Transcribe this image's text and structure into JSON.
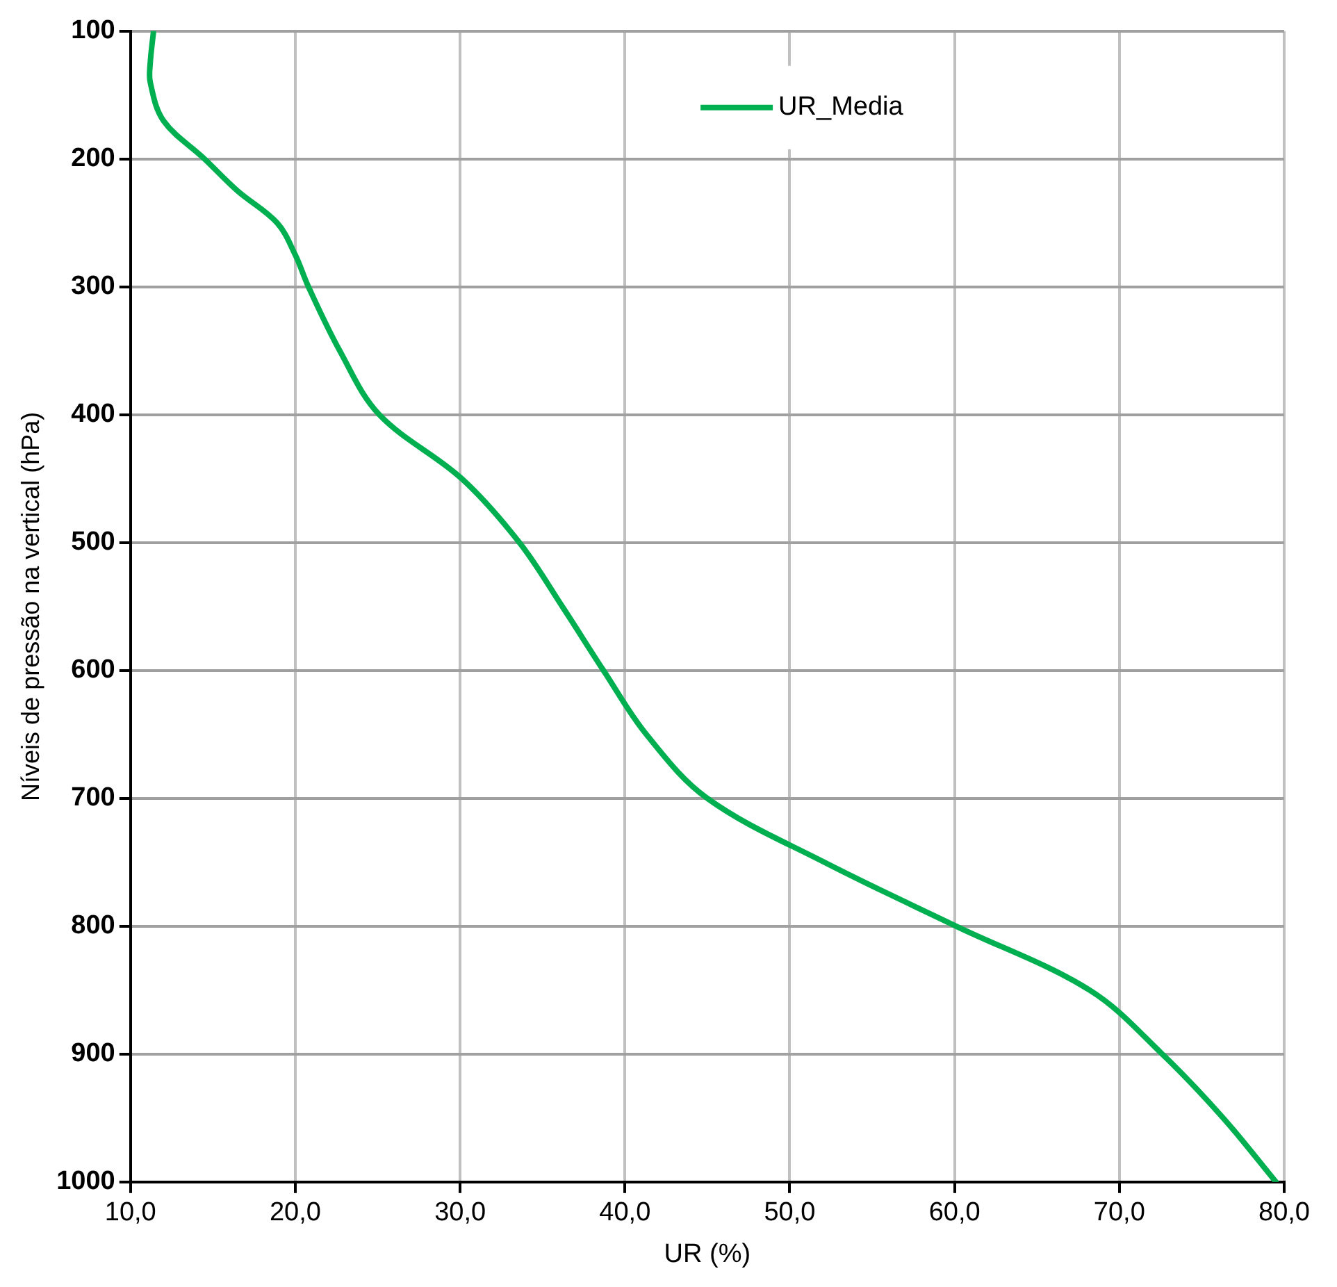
{
  "chart_data": {
    "type": "line",
    "xlabel": "UR (%)",
    "ylabel": "Níveis de pressão na vertical (hPa)",
    "series": [
      {
        "name": "UR_Media",
        "color": "#00b050",
        "x": [
          11.4,
          11.2,
          11.2,
          12.0,
          14.5,
          16.5,
          18.9,
          20.0,
          20.8,
          22.7,
          25.1,
          30.1,
          33.6,
          36.2,
          38.7,
          41.3,
          45.0,
          52.1,
          60.1,
          68.2,
          72.6,
          76.3,
          79.5
        ],
        "values": [
          100,
          125,
          140,
          170,
          200,
          225,
          250,
          275,
          300,
          350,
          400,
          450,
          500,
          550,
          600,
          650,
          700,
          750,
          800,
          850,
          900,
          950,
          1000
        ]
      }
    ],
    "xlim": [
      10,
      80
    ],
    "xticks": [
      {
        "value": 10,
        "label": "10,0"
      },
      {
        "value": 20,
        "label": "20,0"
      },
      {
        "value": 30,
        "label": "30,0"
      },
      {
        "value": 40,
        "label": "40,0"
      },
      {
        "value": 50,
        "label": "50,0"
      },
      {
        "value": 60,
        "label": "60,0"
      },
      {
        "value": 70,
        "label": "70,0"
      },
      {
        "value": 80,
        "label": "80,0"
      }
    ],
    "ylim": [
      1000,
      100
    ],
    "yticks": [
      100,
      200,
      300,
      400,
      500,
      600,
      700,
      800,
      900,
      1000
    ],
    "grid": true,
    "legend": "top",
    "marker": "none",
    "line_style": "solid"
  }
}
